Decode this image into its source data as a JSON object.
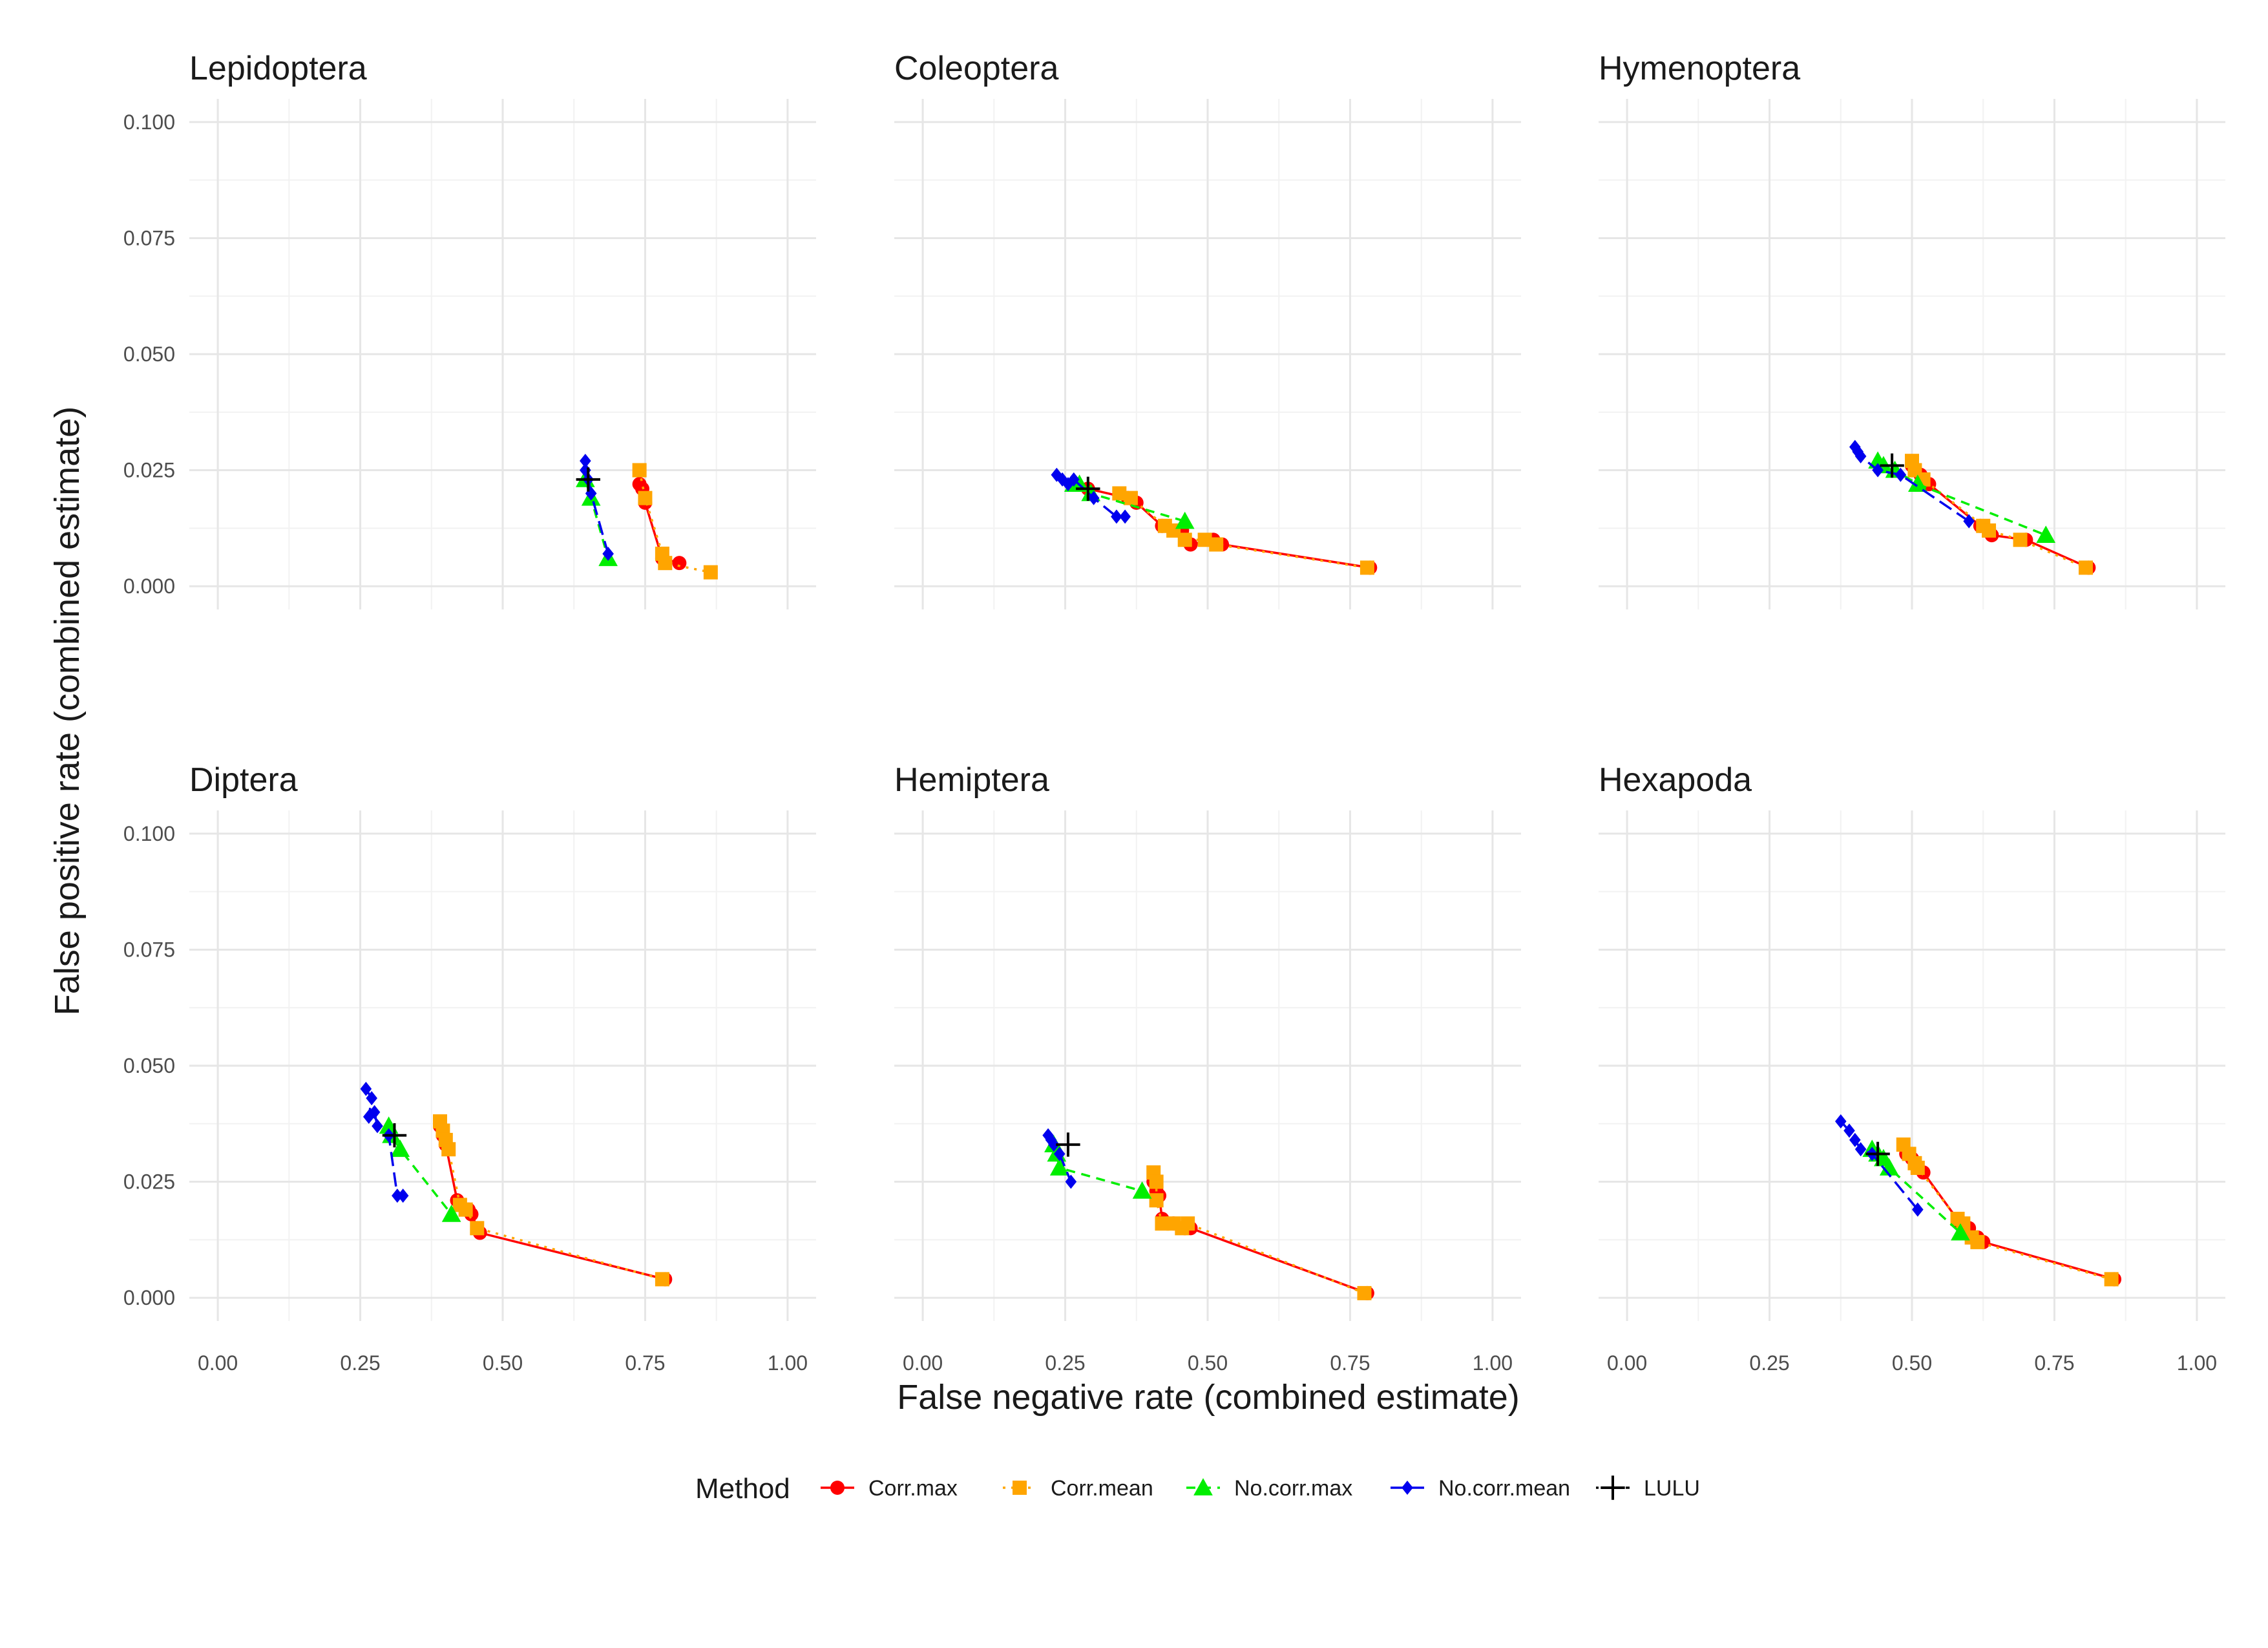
{
  "figure": {
    "xlabel": "False negative rate (combined estimate)",
    "ylabel": "False positive rate (combined estimate)",
    "legend_title": "Method",
    "legend_position": "bottom"
  },
  "colors": {
    "Corr.max": "#ff0000",
    "Corr.mean": "#ffa500",
    "No.corr.max": "#00ee00",
    "No.corr.mean": "#0000ee",
    "LULU": "#000000"
  },
  "legend": [
    {
      "name": "Corr.max",
      "label": "Corr.max",
      "marker": "circle",
      "dash": "solid"
    },
    {
      "name": "Corr.mean",
      "label": "Corr.mean",
      "marker": "square",
      "dash": "dotted"
    },
    {
      "name": "No.corr.max",
      "label": "No.corr.max",
      "marker": "triangle",
      "dash": "dashed"
    },
    {
      "name": "No.corr.mean",
      "label": "No.corr.mean",
      "marker": "diamond",
      "dash": "longdash"
    },
    {
      "name": "LULU",
      "label": "LULU",
      "marker": "plus",
      "dash": "dotdash"
    }
  ],
  "chart_data": [
    {
      "type": "line",
      "title": "Lepidoptera",
      "xlim": [
        -0.05,
        1.05
      ],
      "ylim": [
        -0.005,
        0.105
      ],
      "xticks": [
        "0.00",
        "0.25",
        "0.50",
        "0.75",
        "1.00"
      ],
      "yticks": [
        "0.000",
        "0.025",
        "0.050",
        "0.075",
        "0.100"
      ],
      "grid": true,
      "series": [
        {
          "name": "Corr.max",
          "x": [
            0.74,
            0.745,
            0.75,
            0.78,
            0.81
          ],
          "y": [
            0.022,
            0.021,
            0.018,
            0.006,
            0.005
          ]
        },
        {
          "name": "Corr.mean",
          "x": [
            0.74,
            0.75,
            0.78,
            0.785,
            0.865
          ],
          "y": [
            0.025,
            0.019,
            0.007,
            0.005,
            0.003
          ]
        },
        {
          "name": "No.corr.max",
          "x": [
            0.645,
            0.655,
            0.685
          ],
          "y": [
            0.023,
            0.019,
            0.006
          ]
        },
        {
          "name": "No.corr.mean",
          "x": [
            0.645,
            0.645,
            0.65,
            0.655,
            0.685
          ],
          "y": [
            0.027,
            0.025,
            0.023,
            0.02,
            0.007
          ]
        },
        {
          "name": "LULU",
          "x": [
            0.65
          ],
          "y": [
            0.023
          ]
        }
      ]
    },
    {
      "type": "line",
      "title": "Coleoptera",
      "xlim": [
        -0.05,
        1.05
      ],
      "ylim": [
        -0.005,
        0.105
      ],
      "xticks": [
        "0.00",
        "0.25",
        "0.50",
        "0.75",
        "1.00"
      ],
      "yticks": [
        "0.000",
        "0.025",
        "0.050",
        "0.075",
        "0.100"
      ],
      "grid": true,
      "series": [
        {
          "name": "Corr.max",
          "x": [
            0.29,
            0.36,
            0.375,
            0.42,
            0.455,
            0.47,
            0.51,
            0.525,
            0.785
          ],
          "y": [
            0.021,
            0.019,
            0.018,
            0.013,
            0.012,
            0.009,
            0.01,
            0.009,
            0.004
          ]
        },
        {
          "name": "Corr.mean",
          "x": [
            0.345,
            0.365,
            0.425,
            0.44,
            0.46,
            0.495,
            0.515,
            0.78
          ],
          "y": [
            0.02,
            0.019,
            0.013,
            0.012,
            0.01,
            0.01,
            0.009,
            0.004
          ]
        },
        {
          "name": "No.corr.max",
          "x": [
            0.265,
            0.275,
            0.295,
            0.46
          ],
          "y": [
            0.022,
            0.022,
            0.02,
            0.014
          ]
        },
        {
          "name": "No.corr.mean",
          "x": [
            0.235,
            0.245,
            0.255,
            0.265,
            0.3,
            0.34,
            0.355
          ],
          "y": [
            0.024,
            0.023,
            0.022,
            0.023,
            0.019,
            0.015,
            0.015
          ]
        },
        {
          "name": "LULU",
          "x": [
            0.29
          ],
          "y": [
            0.021
          ]
        }
      ]
    },
    {
      "type": "line",
      "title": "Hymenoptera",
      "xlim": [
        -0.05,
        1.05
      ],
      "ylim": [
        -0.005,
        0.105
      ],
      "xticks": [
        "0.00",
        "0.25",
        "0.50",
        "0.75",
        "1.00"
      ],
      "yticks": [
        "0.000",
        "0.025",
        "0.050",
        "0.075",
        "0.100"
      ],
      "grid": true,
      "series": [
        {
          "name": "Corr.max",
          "x": [
            0.5,
            0.515,
            0.53,
            0.62,
            0.64,
            0.7,
            0.81
          ],
          "y": [
            0.026,
            0.024,
            0.022,
            0.013,
            0.011,
            0.01,
            0.004
          ]
        },
        {
          "name": "Corr.mean",
          "x": [
            0.5,
            0.505,
            0.52,
            0.625,
            0.635,
            0.69,
            0.805
          ],
          "y": [
            0.027,
            0.025,
            0.023,
            0.013,
            0.012,
            0.01,
            0.004
          ]
        },
        {
          "name": "No.corr.max",
          "x": [
            0.44,
            0.45,
            0.47,
            0.51,
            0.735
          ],
          "y": [
            0.027,
            0.026,
            0.025,
            0.022,
            0.011
          ]
        },
        {
          "name": "No.corr.mean",
          "x": [
            0.4,
            0.405,
            0.41,
            0.44,
            0.48,
            0.6
          ],
          "y": [
            0.03,
            0.029,
            0.028,
            0.025,
            0.024,
            0.014
          ]
        },
        {
          "name": "LULU",
          "x": [
            0.465
          ],
          "y": [
            0.026
          ]
        }
      ]
    },
    {
      "type": "line",
      "title": "Diptera",
      "xlim": [
        -0.05,
        1.05
      ],
      "ylim": [
        -0.005,
        0.105
      ],
      "xticks": [
        "0.00",
        "0.25",
        "0.50",
        "0.75",
        "1.00"
      ],
      "yticks": [
        "0.000",
        "0.025",
        "0.050",
        "0.075",
        "0.100"
      ],
      "grid": true,
      "series": [
        {
          "name": "Corr.max",
          "x": [
            0.39,
            0.395,
            0.4,
            0.42,
            0.44,
            0.445,
            0.46,
            0.785
          ],
          "y": [
            0.037,
            0.035,
            0.033,
            0.021,
            0.019,
            0.018,
            0.014,
            0.004
          ]
        },
        {
          "name": "Corr.mean",
          "x": [
            0.39,
            0.395,
            0.4,
            0.405,
            0.425,
            0.435,
            0.455,
            0.78
          ],
          "y": [
            0.038,
            0.036,
            0.034,
            0.032,
            0.02,
            0.019,
            0.015,
            0.004
          ]
        },
        {
          "name": "No.corr.max",
          "x": [
            0.3,
            0.305,
            0.32,
            0.41
          ],
          "y": [
            0.037,
            0.035,
            0.032,
            0.018
          ]
        },
        {
          "name": "No.corr.mean",
          "x": [
            0.26,
            0.27,
            0.265,
            0.275,
            0.28,
            0.3,
            0.315,
            0.325
          ],
          "y": [
            0.045,
            0.043,
            0.039,
            0.04,
            0.037,
            0.035,
            0.022,
            0.022
          ]
        },
        {
          "name": "LULU",
          "x": [
            0.31
          ],
          "y": [
            0.035
          ]
        }
      ]
    },
    {
      "type": "line",
      "title": "Hemiptera",
      "xlim": [
        -0.05,
        1.05
      ],
      "ylim": [
        -0.005,
        0.105
      ],
      "xticks": [
        "0.00",
        "0.25",
        "0.50",
        "0.75",
        "1.00"
      ],
      "yticks": [
        "0.000",
        "0.025",
        "0.050",
        "0.075",
        "0.100"
      ],
      "grid": true,
      "series": [
        {
          "name": "Corr.max",
          "x": [
            0.405,
            0.41,
            0.415,
            0.42,
            0.44,
            0.46,
            0.47,
            0.78
          ],
          "y": [
            0.025,
            0.023,
            0.022,
            0.017,
            0.016,
            0.015,
            0.015,
            0.001
          ]
        },
        {
          "name": "Corr.mean",
          "x": [
            0.405,
            0.41,
            0.41,
            0.42,
            0.44,
            0.455,
            0.465,
            0.775
          ],
          "y": [
            0.027,
            0.025,
            0.021,
            0.016,
            0.016,
            0.015,
            0.016,
            0.001
          ]
        },
        {
          "name": "No.corr.max",
          "x": [
            0.23,
            0.235,
            0.24,
            0.385
          ],
          "y": [
            0.033,
            0.031,
            0.028,
            0.023
          ]
        },
        {
          "name": "No.corr.mean",
          "x": [
            0.22,
            0.225,
            0.23,
            0.24,
            0.26
          ],
          "y": [
            0.035,
            0.034,
            0.033,
            0.031,
            0.025
          ]
        },
        {
          "name": "LULU",
          "x": [
            0.255
          ],
          "y": [
            0.033
          ]
        }
      ]
    },
    {
      "type": "line",
      "title": "Hexapoda",
      "xlim": [
        -0.05,
        1.05
      ],
      "ylim": [
        -0.005,
        0.105
      ],
      "xticks": [
        "0.00",
        "0.25",
        "0.50",
        "0.75",
        "1.00"
      ],
      "yticks": [
        "0.000",
        "0.025",
        "0.050",
        "0.075",
        "0.100"
      ],
      "grid": true,
      "series": [
        {
          "name": "Corr.max",
          "x": [
            0.49,
            0.5,
            0.51,
            0.52,
            0.585,
            0.6,
            0.615,
            0.625,
            0.855
          ],
          "y": [
            0.031,
            0.03,
            0.028,
            0.027,
            0.016,
            0.015,
            0.013,
            0.012,
            0.004
          ]
        },
        {
          "name": "Corr.mean",
          "x": [
            0.485,
            0.495,
            0.505,
            0.51,
            0.58,
            0.59,
            0.605,
            0.615,
            0.85
          ],
          "y": [
            0.033,
            0.031,
            0.029,
            0.028,
            0.017,
            0.016,
            0.013,
            0.012,
            0.004
          ]
        },
        {
          "name": "No.corr.max",
          "x": [
            0.43,
            0.44,
            0.45,
            0.46,
            0.585
          ],
          "y": [
            0.032,
            0.031,
            0.03,
            0.028,
            0.014
          ]
        },
        {
          "name": "No.corr.mean",
          "x": [
            0.375,
            0.39,
            0.4,
            0.41,
            0.43,
            0.51
          ],
          "y": [
            0.038,
            0.036,
            0.034,
            0.032,
            0.031,
            0.019
          ]
        },
        {
          "name": "LULU",
          "x": [
            0.44
          ],
          "y": [
            0.031
          ]
        }
      ]
    }
  ]
}
